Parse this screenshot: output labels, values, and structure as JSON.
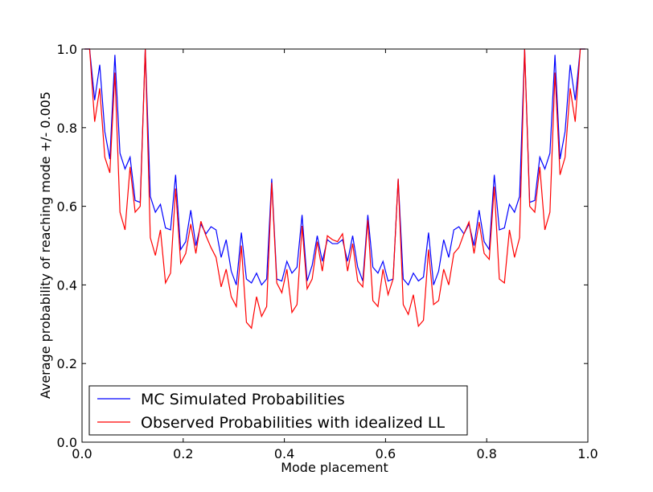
{
  "chart_data": {
    "type": "line",
    "title": "",
    "xlabel": "Mode placement",
    "ylabel": "Average probability of reaching mode +/- 0.005",
    "xlim": [
      0.0,
      1.0
    ],
    "ylim": [
      0.0,
      1.0
    ],
    "xticks": [
      "0.0",
      "0.2",
      "0.4",
      "0.6",
      "0.8",
      "1.0"
    ],
    "yticks": [
      "0.0",
      "0.2",
      "0.4",
      "0.6",
      "0.8",
      "1.0"
    ],
    "grid": false,
    "legend_position": "lower-left",
    "series": [
      {
        "name": "MC Simulated Probabilities",
        "color": "#0000ff",
        "x": [
          0.005,
          0.015,
          0.025,
          0.035,
          0.045,
          0.055,
          0.065,
          0.075,
          0.085,
          0.095,
          0.105,
          0.115,
          0.125,
          0.135,
          0.145,
          0.155,
          0.165,
          0.175,
          0.185,
          0.195,
          0.205,
          0.215,
          0.225,
          0.235,
          0.245,
          0.255,
          0.265,
          0.275,
          0.285,
          0.295,
          0.305,
          0.315,
          0.325,
          0.335,
          0.345,
          0.355,
          0.365,
          0.375,
          0.385,
          0.395,
          0.405,
          0.415,
          0.425,
          0.435,
          0.445,
          0.455,
          0.465,
          0.475,
          0.485,
          0.495,
          0.505,
          0.515,
          0.525,
          0.535,
          0.545,
          0.555,
          0.565,
          0.575,
          0.585,
          0.595,
          0.605,
          0.615,
          0.625,
          0.635,
          0.645,
          0.655,
          0.665,
          0.675,
          0.685,
          0.695,
          0.705,
          0.715,
          0.725,
          0.735,
          0.745,
          0.755,
          0.765,
          0.775,
          0.785,
          0.795,
          0.805,
          0.815,
          0.825,
          0.835,
          0.845,
          0.855,
          0.865,
          0.875,
          0.885,
          0.895,
          0.905,
          0.915,
          0.925,
          0.935,
          0.945,
          0.955,
          0.965,
          0.975,
          0.985,
          0.995
        ],
        "values": [
          1.0,
          1.0,
          0.87,
          0.96,
          0.79,
          0.72,
          0.985,
          0.735,
          0.695,
          0.725,
          0.615,
          0.61,
          1.0,
          0.625,
          0.585,
          0.605,
          0.545,
          0.54,
          0.68,
          0.49,
          0.51,
          0.59,
          0.5,
          0.555,
          0.53,
          0.548,
          0.54,
          0.47,
          0.515,
          0.435,
          0.4,
          0.533,
          0.415,
          0.405,
          0.43,
          0.4,
          0.415,
          0.67,
          0.415,
          0.41,
          0.46,
          0.43,
          0.445,
          0.578,
          0.41,
          0.45,
          0.525,
          0.46,
          0.515,
          0.505,
          0.505,
          0.515,
          0.46,
          0.525,
          0.445,
          0.41,
          0.578,
          0.445,
          0.43,
          0.46,
          0.41,
          0.415,
          0.67,
          0.415,
          0.4,
          0.43,
          0.41,
          0.42,
          0.533,
          0.4,
          0.435,
          0.515,
          0.47,
          0.54,
          0.548,
          0.53,
          0.555,
          0.5,
          0.59,
          0.51,
          0.49,
          0.68,
          0.54,
          0.545,
          0.605,
          0.585,
          0.625,
          1.0,
          0.61,
          0.615,
          0.725,
          0.695,
          0.735,
          0.985,
          0.72,
          0.79,
          0.96,
          0.87,
          1.0,
          1.0
        ]
      },
      {
        "name": "Observed Probabilities with idealized LL",
        "color": "#ff0000",
        "x": [
          0.005,
          0.015,
          0.025,
          0.035,
          0.045,
          0.055,
          0.065,
          0.075,
          0.085,
          0.095,
          0.105,
          0.115,
          0.125,
          0.135,
          0.145,
          0.155,
          0.165,
          0.175,
          0.185,
          0.195,
          0.205,
          0.215,
          0.225,
          0.235,
          0.245,
          0.255,
          0.265,
          0.275,
          0.285,
          0.295,
          0.305,
          0.315,
          0.325,
          0.335,
          0.345,
          0.355,
          0.365,
          0.375,
          0.385,
          0.395,
          0.405,
          0.415,
          0.425,
          0.435,
          0.445,
          0.455,
          0.465,
          0.475,
          0.485,
          0.495,
          0.505,
          0.515,
          0.525,
          0.535,
          0.545,
          0.555,
          0.565,
          0.575,
          0.585,
          0.595,
          0.605,
          0.615,
          0.625,
          0.635,
          0.645,
          0.655,
          0.665,
          0.675,
          0.685,
          0.695,
          0.705,
          0.715,
          0.725,
          0.735,
          0.745,
          0.755,
          0.765,
          0.775,
          0.785,
          0.795,
          0.805,
          0.815,
          0.825,
          0.835,
          0.845,
          0.855,
          0.865,
          0.875,
          0.885,
          0.895,
          0.905,
          0.915,
          0.925,
          0.935,
          0.945,
          0.955,
          0.965,
          0.975,
          0.985,
          0.995
        ],
        "values": [
          1.0,
          1.0,
          0.815,
          0.9,
          0.725,
          0.685,
          0.94,
          0.585,
          0.54,
          0.7,
          0.585,
          0.6,
          1.0,
          0.52,
          0.475,
          0.54,
          0.405,
          0.43,
          0.645,
          0.455,
          0.48,
          0.555,
          0.48,
          0.562,
          0.525,
          0.495,
          0.47,
          0.395,
          0.44,
          0.37,
          0.345,
          0.5,
          0.305,
          0.29,
          0.37,
          0.32,
          0.345,
          0.66,
          0.405,
          0.38,
          0.44,
          0.33,
          0.35,
          0.55,
          0.39,
          0.415,
          0.51,
          0.435,
          0.525,
          0.515,
          0.51,
          0.53,
          0.435,
          0.505,
          0.41,
          0.395,
          0.565,
          0.36,
          0.345,
          0.44,
          0.375,
          0.415,
          0.67,
          0.35,
          0.325,
          0.375,
          0.295,
          0.31,
          0.49,
          0.35,
          0.36,
          0.44,
          0.4,
          0.48,
          0.495,
          0.53,
          0.56,
          0.48,
          0.56,
          0.48,
          0.465,
          0.65,
          0.415,
          0.405,
          0.54,
          0.47,
          0.52,
          1.0,
          0.6,
          0.585,
          0.7,
          0.54,
          0.585,
          0.94,
          0.68,
          0.725,
          0.9,
          0.815,
          1.0,
          1.0
        ]
      }
    ]
  }
}
